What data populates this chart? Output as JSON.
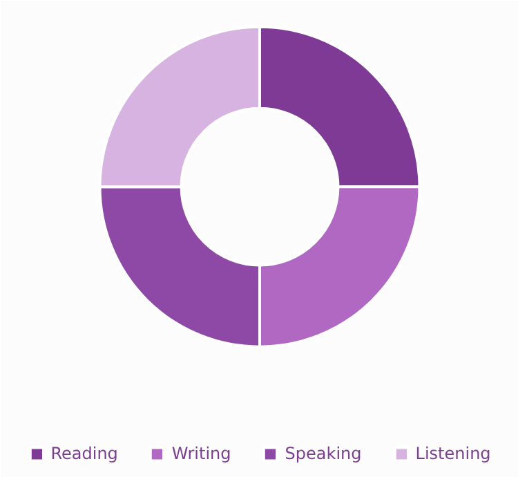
{
  "chart_data": {
    "type": "donut",
    "categories": [
      "Reading",
      "Writing",
      "Speaking",
      "Listening"
    ],
    "values": [
      25,
      25,
      25,
      25
    ],
    "colors": [
      "#7e3a94",
      "#b068c2",
      "#8e48a6",
      "#d7b3e2"
    ],
    "legend": "bottom"
  }
}
